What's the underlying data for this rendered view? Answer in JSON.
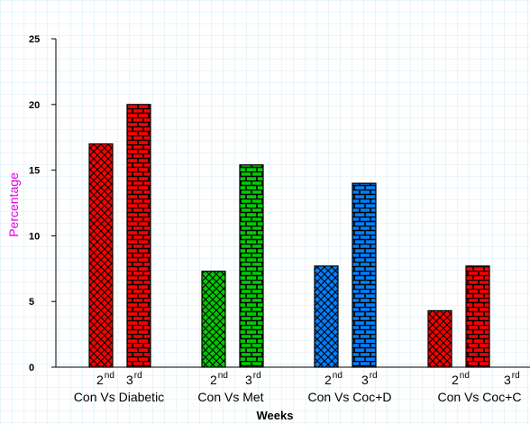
{
  "chart_data": {
    "type": "bar",
    "title": "",
    "xlabel": "Weeks",
    "ylabel": "Percentage",
    "ylim": [
      0,
      25
    ],
    "yticks": [
      0,
      5,
      10,
      15,
      20,
      25
    ],
    "grid": true,
    "groups": [
      {
        "label": "Con Vs Diabetic",
        "color": "#ff0000"
      },
      {
        "label": "Con Vs Met",
        "color": "#00cc00"
      },
      {
        "label": "Con Vs Coc+D",
        "color": "#0080ff"
      },
      {
        "label": "Con Vs Coc+C",
        "color": "#ff0000"
      }
    ],
    "week_labels": [
      {
        "num": "2",
        "sup": "nd"
      },
      {
        "num": "3",
        "sup": "rd"
      }
    ],
    "series": [
      {
        "week": "2nd",
        "pattern": "crosshatch",
        "values": [
          17,
          7.3,
          7.7,
          4.3
        ]
      },
      {
        "week": "3rd",
        "pattern": "brick",
        "values": [
          20,
          15.4,
          14,
          7.7
        ]
      }
    ]
  }
}
